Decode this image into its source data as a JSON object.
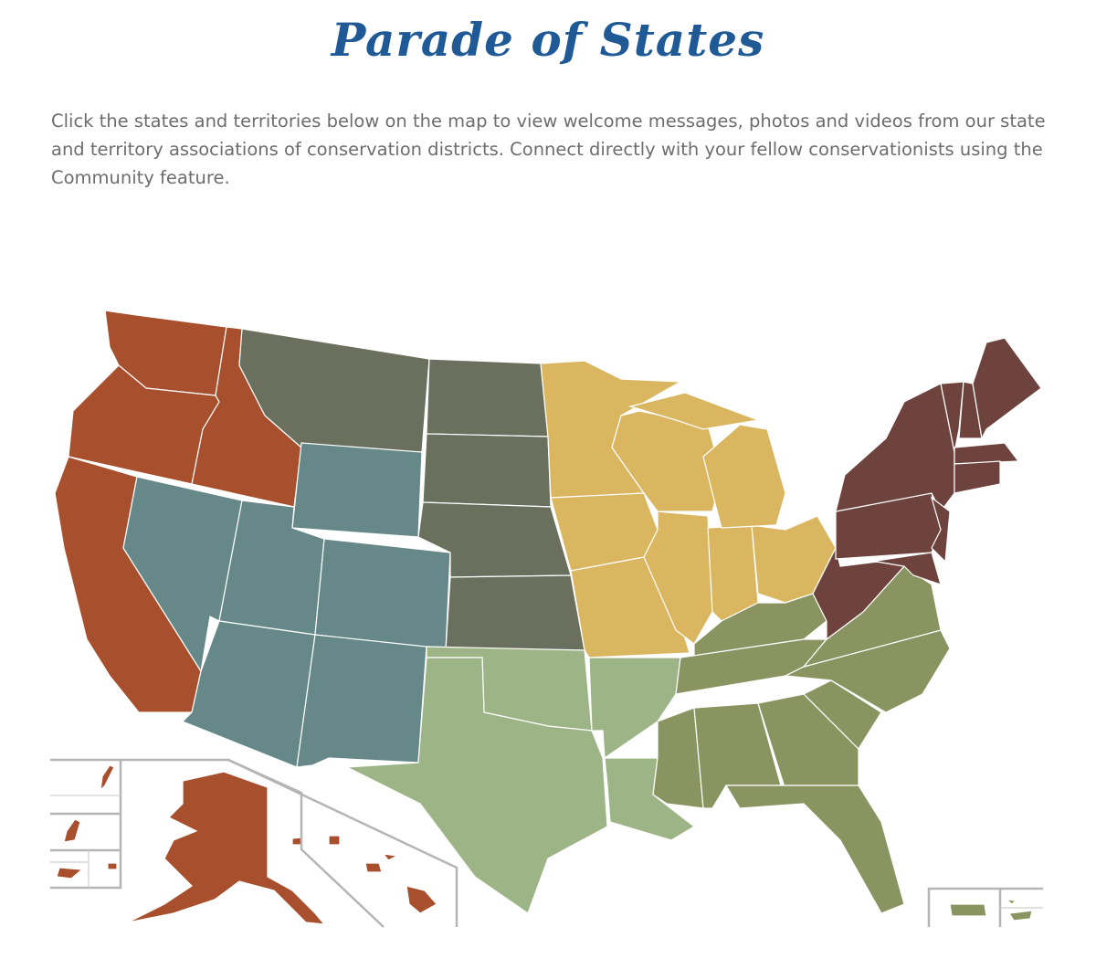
{
  "header": {
    "title": "Parade of States",
    "intro": "Click the states and territories below on the map to view welcome messages, photos and videos from our state and territory associations of conservation districts. Connect directly with your fellow conservationists using the Community feature."
  },
  "colors": {
    "title": "#1f5a96",
    "text": "#6d6d6d",
    "border": "#ffffff",
    "inset_frame": "#b5b5b5"
  },
  "regions": {
    "pacific": "#a84f2d",
    "mountain": "#668889",
    "plains": "#6b705e",
    "midwest": "#dab661",
    "northeast": "#6e433d",
    "southeast": "#8a9461",
    "south_central": "#9db487"
  }
}
